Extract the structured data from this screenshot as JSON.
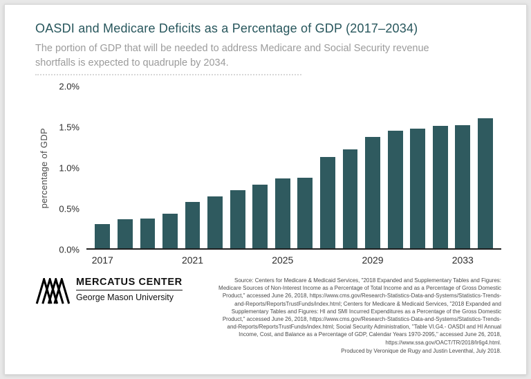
{
  "header": {
    "title": "OASDI and Medicare Deficits as a Percentage of GDP (2017–2034)",
    "subtitle": "The portion of GDP that will be needed to address Medicare and Social Security revenue shortfalls is expected to quadruple by 2034."
  },
  "chart_data": {
    "type": "bar",
    "title": "OASDI and Medicare Deficits as a Percentage of GDP (2017–2034)",
    "xlabel": "",
    "ylabel": "percentage of GDP",
    "ylim": [
      0,
      2.0
    ],
    "y_ticks": [
      "2.0%",
      "1.5%",
      "1.0%",
      "0.5%",
      "0.0%"
    ],
    "categories": [
      2017,
      2018,
      2019,
      2020,
      2021,
      2022,
      2023,
      2024,
      2025,
      2026,
      2027,
      2028,
      2029,
      2030,
      2031,
      2032,
      2033,
      2034
    ],
    "values": [
      0.3,
      0.36,
      0.37,
      0.43,
      0.57,
      0.64,
      0.72,
      0.79,
      0.86,
      0.87,
      1.13,
      1.22,
      1.38,
      1.45,
      1.48,
      1.51,
      1.52,
      1.61
    ],
    "x_tick_labels": [
      "2017",
      "2021",
      "2025",
      "2029",
      "2033"
    ],
    "bar_color": "#2f5a5f",
    "axis_color": "#1f1f1f",
    "grid": false,
    "legend": false
  },
  "footer": {
    "logo_name": "MERCATUS CENTER",
    "logo_sub": "George Mason University",
    "source": "Source: Centers for Medicare & Medicaid Services, \"2018 Expanded and Supplementary Tables and Figures: Medicare Sources of Non-Interest Income as a Percentage of Total Income and as a Percentage of Gross Domestic Product,\" accessed June 26, 2018, https://www.cms.gov/Research-Statistics-Data-and-Systems/Statistics-Trends-and-Reports/ReportsTrustFunds/index.html; Centers for Medicare & Medicaid Services, \"2018 Expanded and Supplementary Tables and Figures: HI and SMI Incurred Expenditures as a Percentage of the Gross Domestic Product,\" accessed June 26, 2018, https://www.cms.gov/Research-Statistics-Data-and-Systems/Statistics-Trends-and-Reports/ReportsTrustFunds/index.html; Social Security Administration, \"Table VI.G4.- OASDI and HI Annual Income, Cost, and Balance as a Percentage of GDP, Calendar Years 1970-2095,\" accessed June 26, 2018, https://www.ssa.gov/OACT/TR/2018/lr6g4.html.",
    "produced_by": "Produced by Veronique de Rugy and Justin Leventhal, July 2018."
  },
  "colors": {
    "title_text": "#27565c",
    "subtitle_text": "#9b9b9b",
    "bar": "#2f5a5f",
    "background": "#ffffff"
  }
}
